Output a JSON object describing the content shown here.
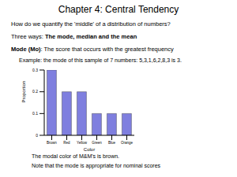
{
  "title": "Chapter 4: Central Tendency",
  "question": "How do we quantify the 'middle' of a distribution of numbers?",
  "three_ways": [
    {
      "text": "Three ways: ",
      "bold": false
    },
    {
      "text": "The mode, median and the mean",
      "bold": true
    }
  ],
  "mode_definition": [
    {
      "text": "Mode (Mo)",
      "bold": true
    },
    {
      "text": ": The score that occurs with the greatest frequency",
      "bold": false
    }
  ],
  "example": "Example: the mode of this sample of 7 numbers: 5,3,1,6,2,8,3 is 3.",
  "chart_data": {
    "type": "bar",
    "xlabel": "Color",
    "ylabel": "Proportion",
    "categories": [
      "Brown",
      "Red",
      "Yellow",
      "Green",
      "Blue",
      "Orange"
    ],
    "values": [
      0.3,
      0.2,
      0.2,
      0.1,
      0.1,
      0.1
    ],
    "color": "#7f7fdf",
    "ylim": [
      0,
      0.3
    ],
    "yticks": [
      0,
      0.1,
      0.2,
      0.3
    ]
  },
  "notes": [
    "The modal color of M&M's is brown.",
    "Note that the mode is appropriate for nominal scores"
  ]
}
